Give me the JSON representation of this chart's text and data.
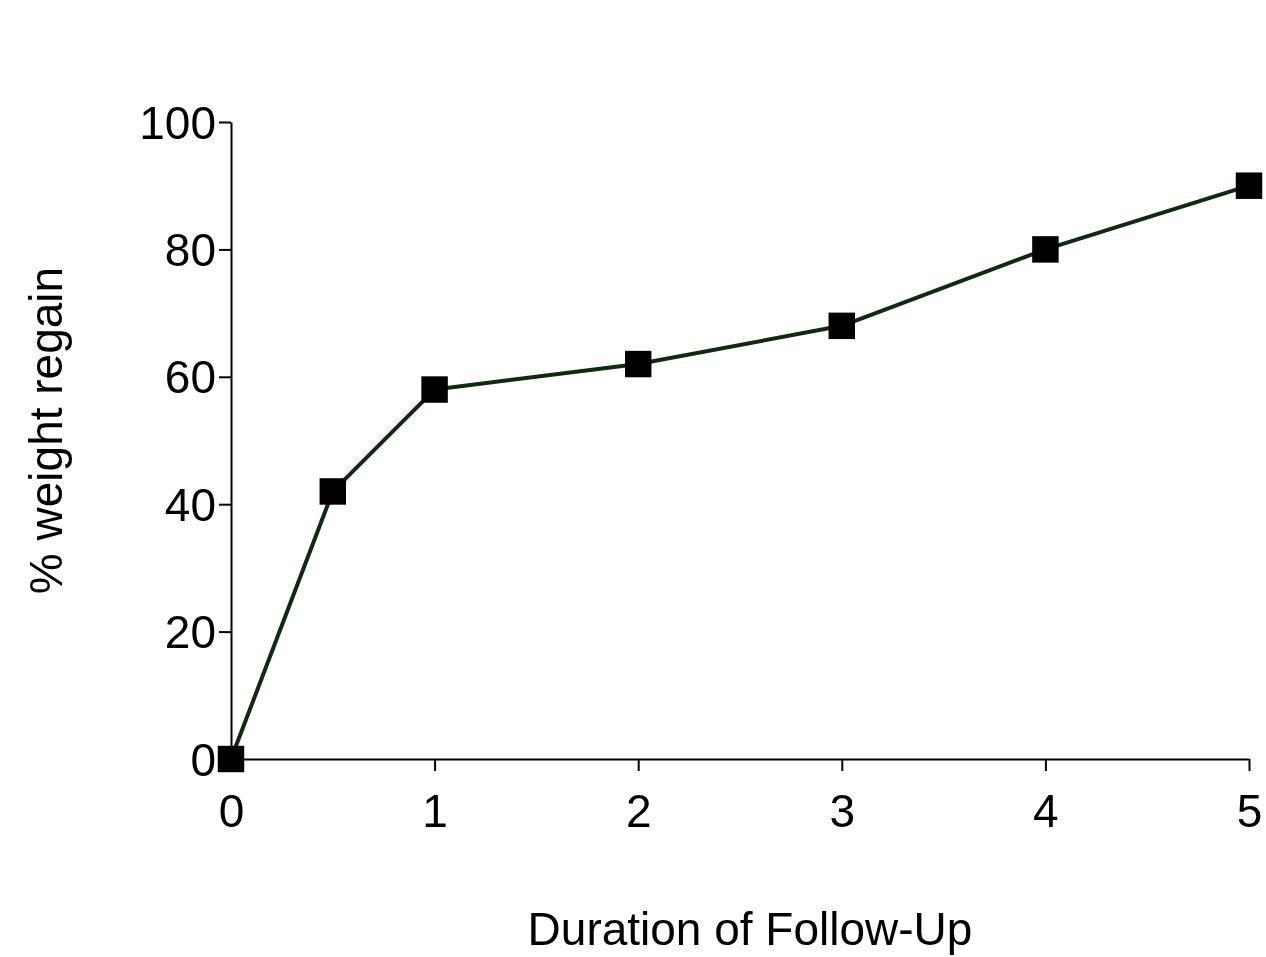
{
  "chart_data": {
    "type": "line",
    "xlabel": "Duration of Follow-Up",
    "ylabel": "% weight regain",
    "x": [
      0,
      0.5,
      1,
      2,
      3,
      4,
      5
    ],
    "series": [
      {
        "color": "#0f2a0f",
        "values": [
          0,
          42,
          58,
          62,
          68,
          80,
          90
        ]
      }
    ],
    "xlim": [
      0,
      5
    ],
    "xticks": [
      0,
      1,
      2,
      3,
      4,
      5
    ],
    "ylim": [
      0,
      100
    ],
    "yticks": [
      0,
      20,
      40,
      60,
      80,
      100
    ],
    "marker": "square",
    "line_style": "solid"
  }
}
